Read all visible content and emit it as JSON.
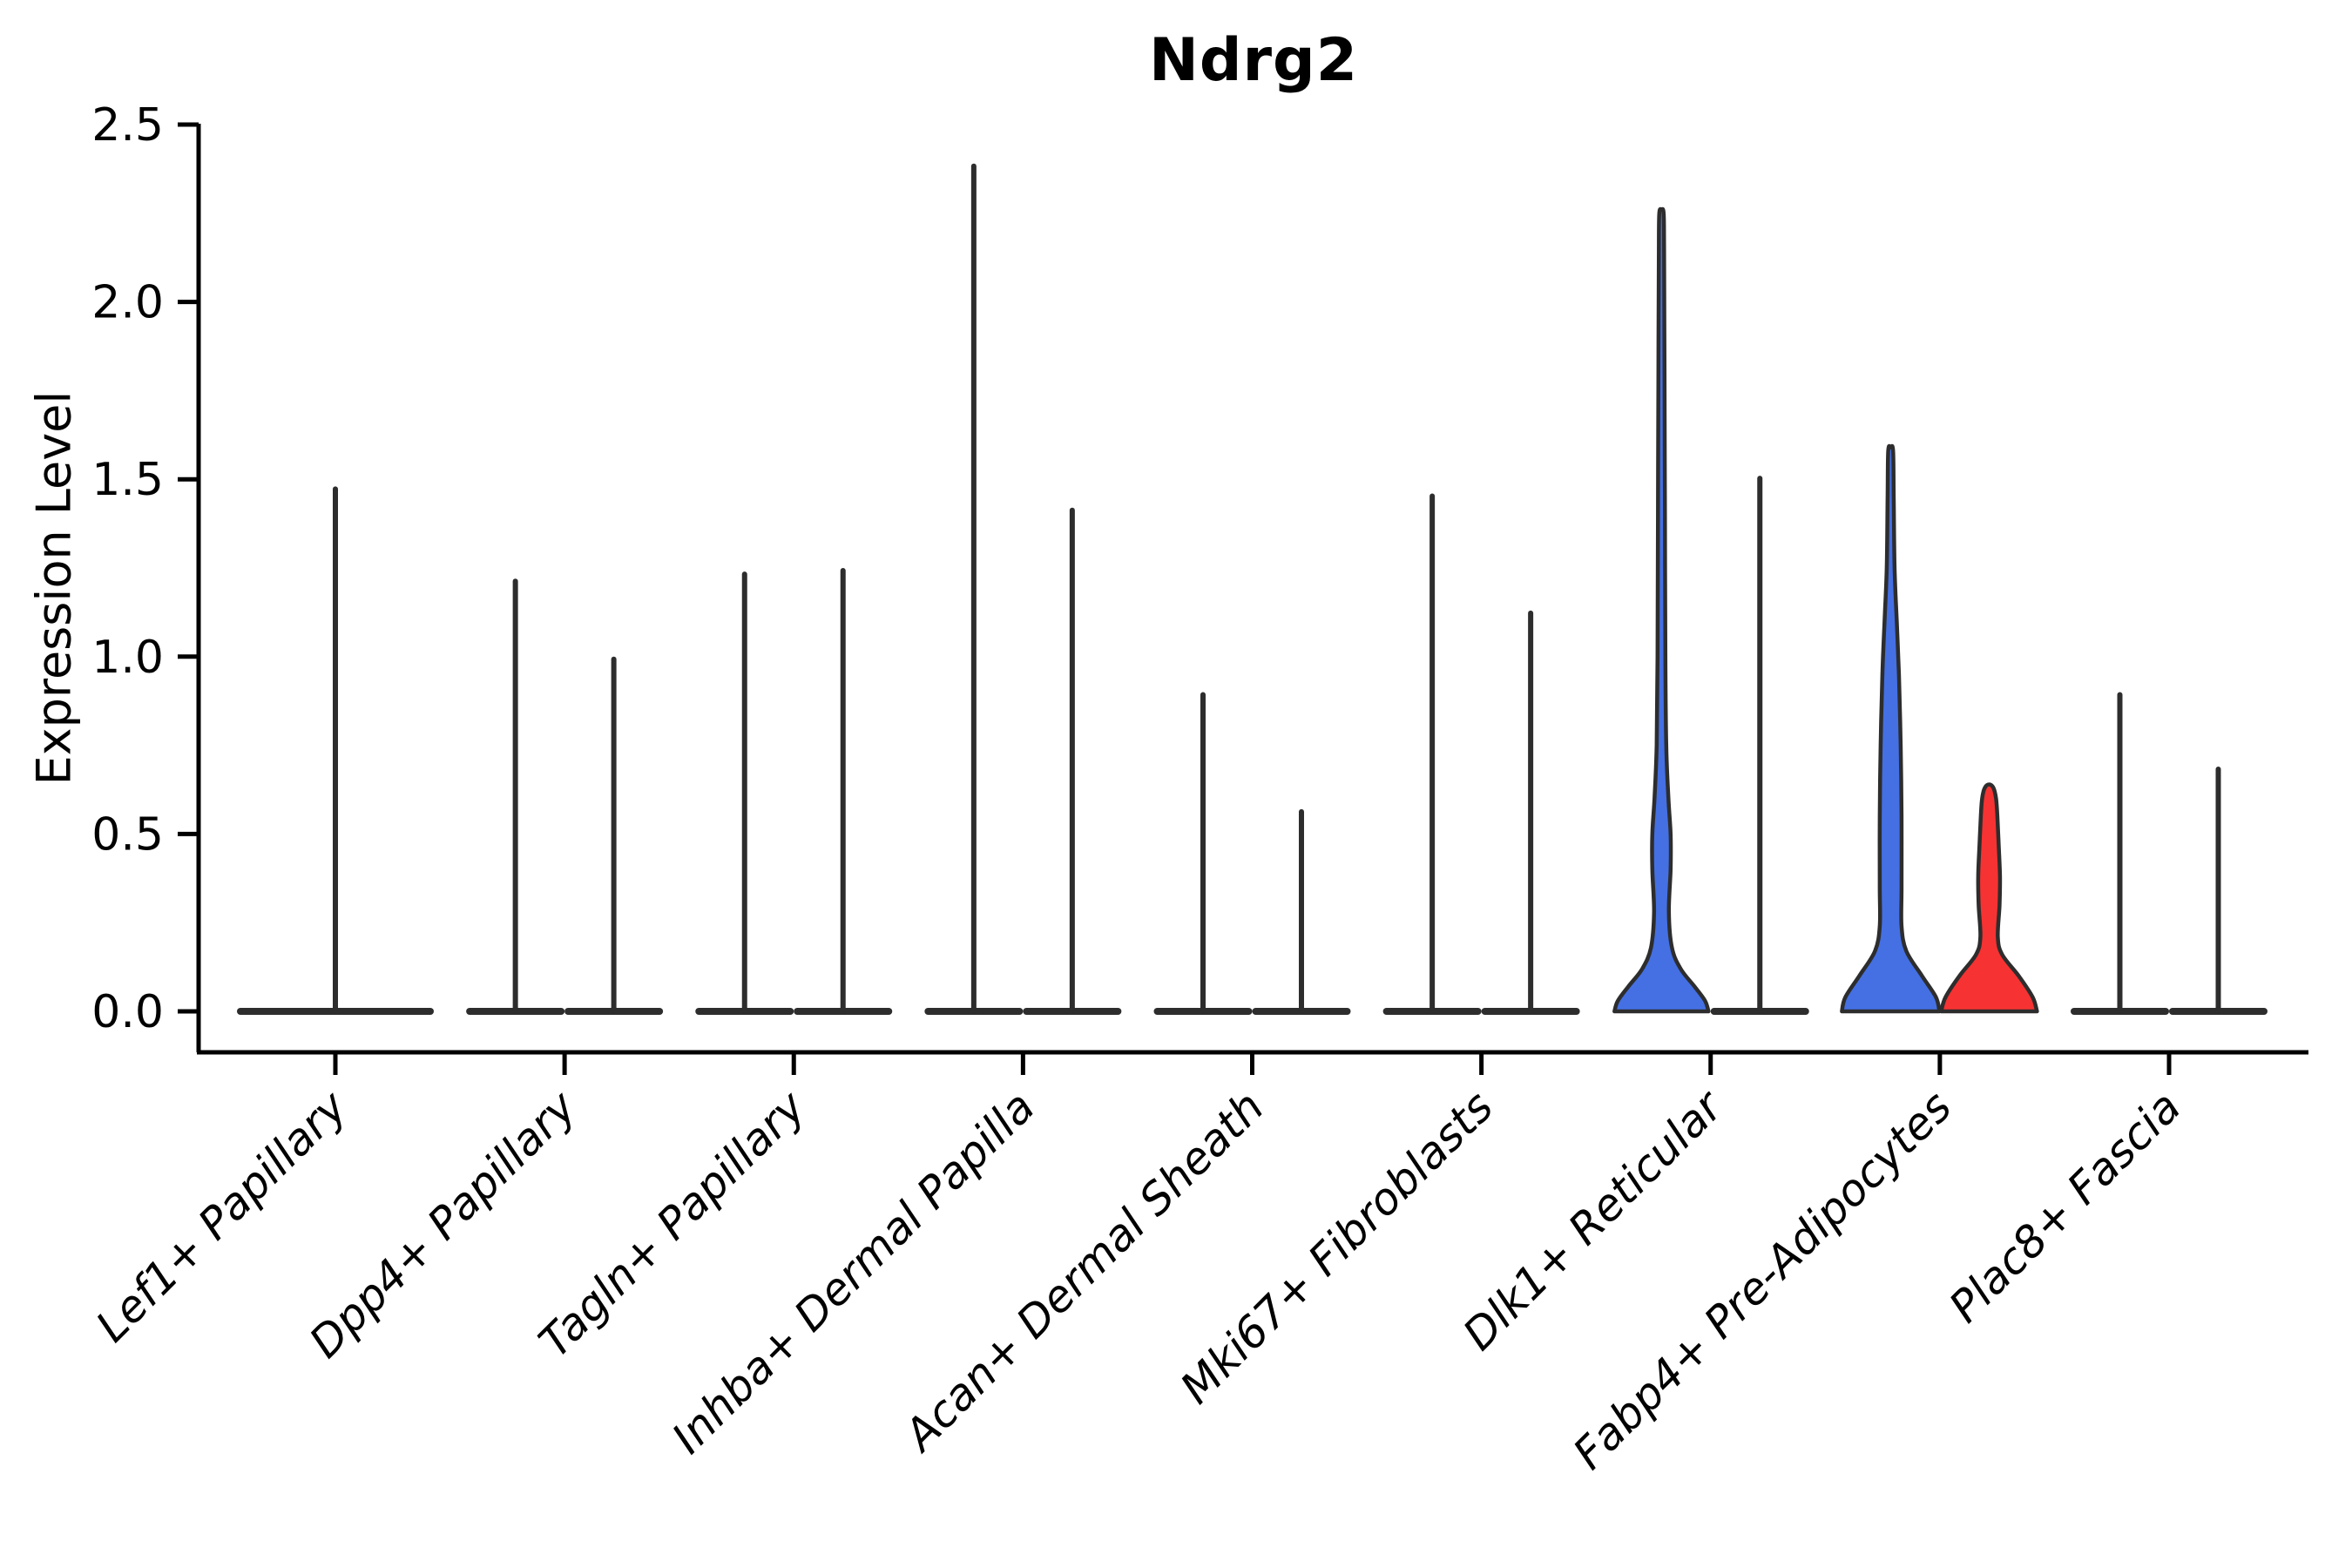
{
  "chart_data": {
    "type": "violin",
    "title": "Ndrg2",
    "ylabel": "Expression Level",
    "xlabel": "",
    "ylim": [
      0,
      2.5
    ],
    "yticks": [
      "0.0",
      "0.5",
      "1.0",
      "1.5",
      "2.0",
      "2.5"
    ],
    "grid": false,
    "legend": null,
    "colors": {
      "blue_fill": "#4470E4",
      "red_fill": "#F73232",
      "violin_outline": "#2D2D2D",
      "axis": "#000000"
    },
    "categories": [
      {
        "label": "Lef1+ Papillary",
        "violins": [
          {
            "position": "full",
            "style": "collapsed-spike",
            "fill": "none",
            "max_expression": 1.48
          }
        ]
      },
      {
        "label": "Dpp4+ Papillary",
        "violins": [
          {
            "position": "left",
            "style": "collapsed-spike",
            "fill": "none",
            "max_expression": 1.22
          },
          {
            "position": "right",
            "style": "collapsed-spike",
            "fill": "none",
            "max_expression": 1.0
          }
        ]
      },
      {
        "label": "Tagln+ Papillary",
        "violins": [
          {
            "position": "left",
            "style": "collapsed-spike",
            "fill": "none",
            "max_expression": 1.24
          },
          {
            "position": "right",
            "style": "collapsed-spike",
            "fill": "none",
            "max_expression": 1.25
          }
        ]
      },
      {
        "label": "Inhba+ Dermal Papilla",
        "violins": [
          {
            "position": "left",
            "style": "collapsed-spike",
            "fill": "none",
            "max_expression": 2.39
          },
          {
            "position": "right",
            "style": "collapsed-spike",
            "fill": "none",
            "max_expression": 1.42
          }
        ]
      },
      {
        "label": "Acan+ Dermal Sheath",
        "violins": [
          {
            "position": "left",
            "style": "collapsed-spike",
            "fill": "none",
            "max_expression": 0.9
          },
          {
            "position": "right",
            "style": "collapsed-spike",
            "fill": "none",
            "max_expression": 0.57
          }
        ]
      },
      {
        "label": "Mki67+ Fibroblasts",
        "violins": [
          {
            "position": "left",
            "style": "collapsed-spike",
            "fill": "none",
            "max_expression": 1.46
          },
          {
            "position": "right",
            "style": "collapsed-spike",
            "fill": "none",
            "max_expression": 1.13
          }
        ]
      },
      {
        "label": "Dlk1+ Reticular",
        "violins": [
          {
            "position": "left",
            "style": "density",
            "fill": "blue",
            "max_expression": 2.25,
            "profile": [
              [
                0,
                54
              ],
              [
                0.03,
                50
              ],
              [
                0.07,
                38
              ],
              [
                0.12,
                22
              ],
              [
                0.18,
                12
              ],
              [
                0.28,
                8.5
              ],
              [
                0.4,
                10.5
              ],
              [
                0.5,
                10.5
              ],
              [
                0.6,
                8
              ],
              [
                0.75,
                5.5
              ],
              [
                1.0,
                4.5
              ],
              [
                1.4,
                4
              ],
              [
                1.8,
                3.5
              ],
              [
                2.15,
                3
              ],
              [
                2.25,
                2.5
              ]
            ]
          },
          {
            "position": "right",
            "style": "collapsed-spike",
            "fill": "none",
            "max_expression": 1.51
          }
        ]
      },
      {
        "label": "Fabp4+ Pre-Adipocytes",
        "violins": [
          {
            "position": "left",
            "style": "density",
            "fill": "blue",
            "max_expression": 1.58,
            "profile": [
              [
                0,
                56
              ],
              [
                0.04,
                52
              ],
              [
                0.1,
                36
              ],
              [
                0.17,
                18
              ],
              [
                0.24,
                12.5
              ],
              [
                0.35,
                12.5
              ],
              [
                0.55,
                12.5
              ],
              [
                0.75,
                11.5
              ],
              [
                0.95,
                9.5
              ],
              [
                1.1,
                7
              ],
              [
                1.25,
                4.5
              ],
              [
                1.45,
                3.5
              ],
              [
                1.58,
                2.8
              ]
            ]
          },
          {
            "position": "right",
            "style": "density",
            "fill": "red",
            "max_expression": 0.63,
            "profile": [
              [
                0,
                55
              ],
              [
                0.04,
                50
              ],
              [
                0.1,
                34
              ],
              [
                0.16,
                15
              ],
              [
                0.21,
                10
              ],
              [
                0.3,
                12
              ],
              [
                0.38,
                12.5
              ],
              [
                0.47,
                11
              ],
              [
                0.55,
                9.5
              ],
              [
                0.6,
                8
              ],
              [
                0.63,
                5
              ]
            ]
          }
        ]
      },
      {
        "label": "Plac8+ Fascia",
        "violins": [
          {
            "position": "left",
            "style": "collapsed-spike",
            "fill": "none",
            "max_expression": 0.9
          },
          {
            "position": "right",
            "style": "collapsed-spike",
            "fill": "none",
            "max_expression": 0.69
          }
        ]
      }
    ]
  }
}
